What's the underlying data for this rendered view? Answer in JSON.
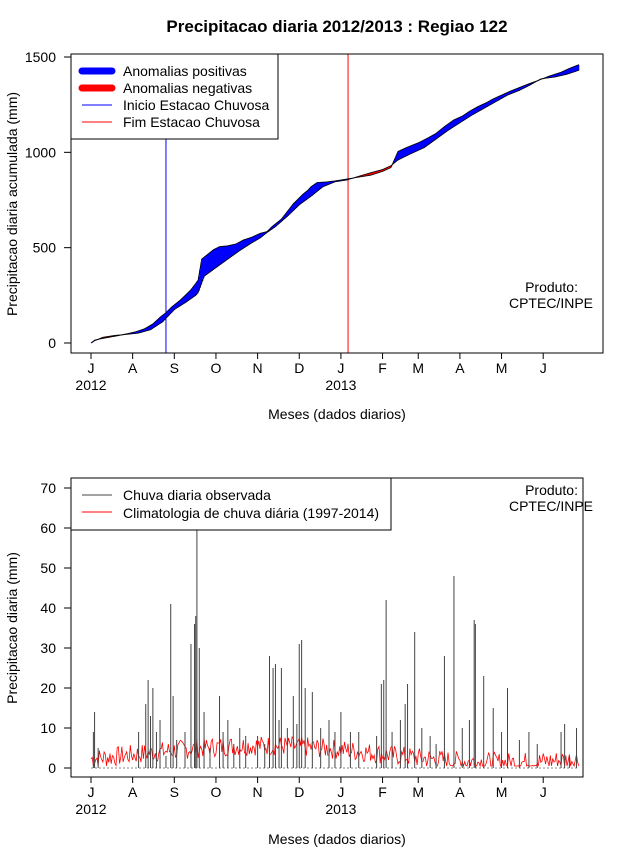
{
  "chart_data": [
    {
      "type": "area",
      "title": "Precipitacao diaria 2012/2013 : Regiao 122",
      "xlabel": "Meses (dados diarios)",
      "ylabel": "Precipitacao diaria acumulada (mm)",
      "ylim": [
        0,
        1500
      ],
      "yticks": [
        0,
        500,
        1000,
        1500
      ],
      "month_ticks": [
        "J",
        "A",
        "S",
        "O",
        "N",
        "D",
        "J",
        "F",
        "M",
        "A",
        "M",
        "J"
      ],
      "year_labels": [
        "2012",
        "2013"
      ],
      "legend": {
        "position": "top-left",
        "entries": [
          "Anomalias positivas",
          "Anomalias negativas",
          "Inicio Estacao Chuvosa",
          "Fim Estacao Chuvosa"
        ]
      },
      "annotation": [
        "Produto:",
        "CPTEC/INPE"
      ],
      "colors": {
        "positive": "#0000ff",
        "negative": "#ff0000",
        "start_line": "#0000ff",
        "end_line": "#ff0000"
      },
      "season_start_day": 63,
      "season_end_day": 216,
      "series": [
        {
          "name": "Observada acumulada",
          "points": [
            [
              0,
              0
            ],
            [
              3,
              15
            ],
            [
              8,
              22
            ],
            [
              15,
              30
            ],
            [
              22,
              38
            ],
            [
              30,
              48
            ],
            [
              38,
              60
            ],
            [
              45,
              75
            ],
            [
              52,
              100
            ],
            [
              58,
              135
            ],
            [
              63,
              160
            ],
            [
              68,
              190
            ],
            [
              75,
              225
            ],
            [
              80,
              255
            ],
            [
              84,
              280
            ],
            [
              88,
              312
            ],
            [
              90,
              330
            ],
            [
              93,
              440
            ],
            [
              97,
              460
            ],
            [
              103,
              490
            ],
            [
              108,
              505
            ],
            [
              115,
              510
            ],
            [
              122,
              520
            ],
            [
              128,
              540
            ],
            [
              135,
              555
            ],
            [
              142,
              575
            ],
            [
              148,
              585
            ],
            [
              152,
              610
            ],
            [
              160,
              650
            ],
            [
              170,
              730
            ],
            [
              178,
              780
            ],
            [
              182,
              800
            ],
            [
              185,
              820
            ],
            [
              190,
              842
            ],
            [
              198,
              845
            ],
            [
              205,
              850
            ],
            [
              215,
              860
            ],
            [
              225,
              870
            ],
            [
              235,
              880
            ],
            [
              245,
              900
            ],
            [
              252,
              920
            ],
            [
              258,
              1005
            ],
            [
              265,
              1025
            ],
            [
              275,
              1050
            ],
            [
              283,
              1075
            ],
            [
              290,
              1100
            ],
            [
              297,
              1135
            ],
            [
              305,
              1170
            ],
            [
              312,
              1190
            ],
            [
              318,
              1215
            ],
            [
              325,
              1240
            ],
            [
              332,
              1260
            ],
            [
              338,
              1280
            ],
            [
              345,
              1300
            ],
            [
              352,
              1320
            ],
            [
              360,
              1340
            ],
            [
              368,
              1360
            ],
            [
              375,
              1375
            ],
            [
              385,
              1400
            ],
            [
              395,
              1420
            ],
            [
              402,
              1440
            ],
            [
              410,
              1460
            ]
          ]
        },
        {
          "name": "Climatologia acumulada",
          "points": [
            [
              0,
              0
            ],
            [
              3,
              12
            ],
            [
              10,
              30
            ],
            [
              20,
              40
            ],
            [
              30,
              45
            ],
            [
              40,
              52
            ],
            [
              50,
              70
            ],
            [
              60,
              110
            ],
            [
              63,
              130
            ],
            [
              70,
              175
            ],
            [
              80,
              215
            ],
            [
              88,
              250
            ],
            [
              90,
              265
            ],
            [
              95,
              350
            ],
            [
              105,
              395
            ],
            [
              115,
              440
            ],
            [
              125,
              485
            ],
            [
              135,
              525
            ],
            [
              142,
              550
            ],
            [
              148,
              580
            ],
            [
              155,
              610
            ],
            [
              165,
              665
            ],
            [
              175,
              725
            ],
            [
              185,
              770
            ],
            [
              195,
              820
            ],
            [
              205,
              845
            ],
            [
              215,
              855
            ],
            [
              225,
              875
            ],
            [
              235,
              893
            ],
            [
              245,
              910
            ],
            [
              252,
              930
            ],
            [
              258,
              960
            ],
            [
              268,
              990
            ],
            [
              280,
              1025
            ],
            [
              290,
              1070
            ],
            [
              300,
              1115
            ],
            [
              310,
              1155
            ],
            [
              320,
              1195
            ],
            [
              330,
              1230
            ],
            [
              340,
              1265
            ],
            [
              350,
              1300
            ],
            [
              360,
              1325
            ],
            [
              368,
              1350
            ],
            [
              378,
              1385
            ],
            [
              390,
              1395
            ],
            [
              400,
              1410
            ],
            [
              410,
              1430
            ]
          ]
        }
      ]
    },
    {
      "type": "line",
      "xlabel": "Meses (dados diarios)",
      "ylabel": "Precipitacao diaria (mm)",
      "ylim": [
        0,
        70
      ],
      "yticks": [
        0,
        10,
        20,
        30,
        40,
        50,
        60,
        70
      ],
      "month_ticks": [
        "J",
        "A",
        "S",
        "O",
        "N",
        "D",
        "J",
        "F",
        "M",
        "A",
        "M",
        "J"
      ],
      "year_labels": [
        "2012",
        "2013"
      ],
      "legend": {
        "position": "top-left",
        "entries": [
          "Chuva diaria observada",
          "Climatologia de chuva diária (1997-2014)"
        ]
      },
      "annotation": [
        "Produto:",
        "CPTEC/INPE"
      ],
      "colors": {
        "observed": "#444444",
        "climatology": "#ff0000"
      },
      "series": [
        {
          "name": "Chuva diaria observada",
          "spikes": [
            [
              2,
              9
            ],
            [
              3,
              14
            ],
            [
              6,
              5
            ],
            [
              40,
              9
            ],
            [
              46,
              16
            ],
            [
              48,
              22
            ],
            [
              50,
              13
            ],
            [
              52,
              20
            ],
            [
              55,
              9
            ],
            [
              58,
              12
            ],
            [
              63,
              3
            ],
            [
              67,
              41
            ],
            [
              69,
              18
            ],
            [
              72,
              7
            ],
            [
              79,
              9
            ],
            [
              84,
              31
            ],
            [
              87,
              36
            ],
            [
              88,
              38
            ],
            [
              89,
              60
            ],
            [
              91,
              30
            ],
            [
              95,
              14
            ],
            [
              100,
              5
            ],
            [
              108,
              18
            ],
            [
              111,
              9
            ],
            [
              115,
              12
            ],
            [
              120,
              6
            ],
            [
              125,
              10
            ],
            [
              130,
              8
            ],
            [
              140,
              8
            ],
            [
              146,
              6
            ],
            [
              150,
              28
            ],
            [
              153,
              25
            ],
            [
              155,
              26
            ],
            [
              158,
              12
            ],
            [
              160,
              25
            ],
            [
              165,
              10
            ],
            [
              170,
              18
            ],
            [
              173,
              11
            ],
            [
              175,
              31
            ],
            [
              177,
              32
            ],
            [
              180,
              20
            ],
            [
              186,
              19
            ],
            [
              193,
              10
            ],
            [
              200,
              12
            ],
            [
              205,
              9
            ],
            [
              210,
              14
            ],
            [
              218,
              9
            ],
            [
              225,
              9
            ],
            [
              240,
              8
            ],
            [
              244,
              21
            ],
            [
              246,
              22
            ],
            [
              248,
              42
            ],
            [
              253,
              9
            ],
            [
              260,
              12
            ],
            [
              264,
              16
            ],
            [
              266,
              21
            ],
            [
              272,
              34
            ],
            [
              278,
              10
            ],
            [
              285,
              8
            ],
            [
              290,
              6
            ],
            [
              297,
              28
            ],
            [
              305,
              48
            ],
            [
              312,
              10
            ],
            [
              318,
              12
            ],
            [
              322,
              37
            ],
            [
              323,
              36
            ],
            [
              330,
              23
            ],
            [
              338,
              15
            ],
            [
              345,
              9
            ],
            [
              350,
              20
            ],
            [
              360,
              7
            ],
            [
              368,
              9
            ],
            [
              375,
              6
            ],
            [
              395,
              9
            ],
            [
              398,
              11
            ],
            [
              402,
              3
            ],
            [
              408,
              10
            ]
          ]
        },
        {
          "name": "Climatologia de chuva diária (1997-2014)",
          "base": 3.5,
          "amplitude": 2.5
        }
      ]
    }
  ]
}
